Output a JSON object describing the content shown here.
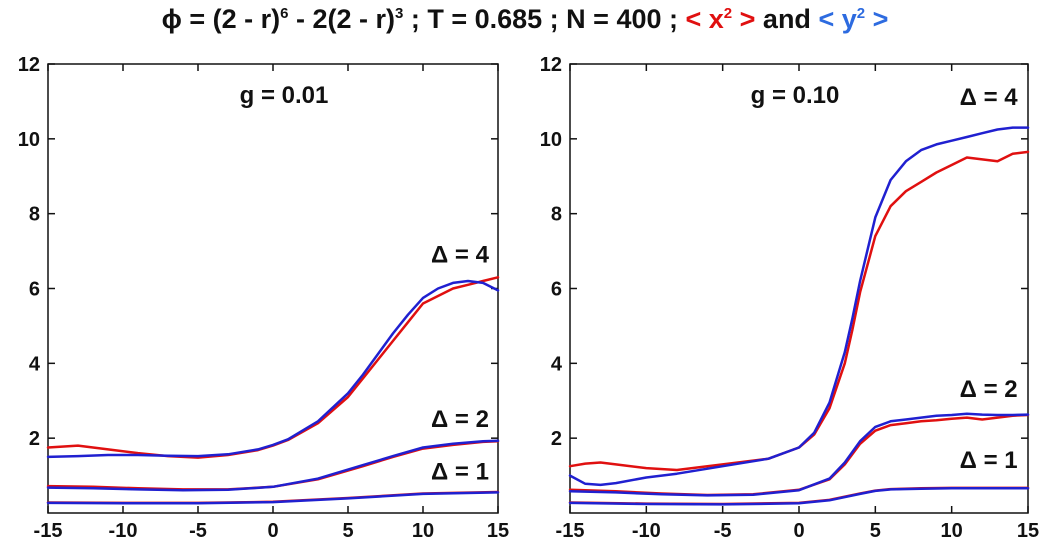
{
  "title": {
    "phi_symbol": "ϕ",
    "part1": " = (2 - r)",
    "exp6": "6",
    "part2": " - 2(2 - r)",
    "exp3": "3",
    "part3": " ; T = 0.685 ; N = 400 ; ",
    "x2_open": "< x",
    "x2_exp": "2",
    "x2_close": " >",
    "and": " and ",
    "y2_open": "< y",
    "y2_exp": "2",
    "y2_close": " >"
  },
  "colors": {
    "x2": "#e01010",
    "y2": "#2020d0",
    "legend_y2": "#2d6be0",
    "axis": "#111111"
  },
  "chart_data": [
    {
      "type": "line",
      "title": "g = 0.01",
      "xlim": [
        -15,
        15
      ],
      "ylim": [
        0,
        12
      ],
      "xticks": [
        -15,
        -10,
        -5,
        0,
        5,
        10,
        15
      ],
      "yticks": [
        2,
        4,
        6,
        8,
        10,
        12
      ],
      "grid": false,
      "annotations": [
        {
          "text": "Δ = 4",
          "x": 10,
          "y": 6.7
        },
        {
          "text": "Δ = 2",
          "x": 10,
          "y": 2.3
        },
        {
          "text": "Δ = 1",
          "x": 10,
          "y": 0.9
        }
      ],
      "series": [
        {
          "curve": "Δ = 4",
          "quantity": "<x²>",
          "color": "#e01010",
          "x": [
            -15,
            -13,
            -11,
            -9,
            -7,
            -5,
            -3,
            -1,
            0,
            1,
            3,
            5,
            6,
            7,
            8,
            9,
            10,
            11,
            12,
            13,
            14,
            15
          ],
          "y": [
            1.75,
            1.8,
            1.7,
            1.6,
            1.52,
            1.48,
            1.55,
            1.68,
            1.8,
            1.95,
            2.4,
            3.1,
            3.6,
            4.1,
            4.6,
            5.1,
            5.6,
            5.8,
            6.0,
            6.1,
            6.2,
            6.3
          ]
        },
        {
          "curve": "Δ = 4",
          "quantity": "<y²>",
          "color": "#2020d0",
          "x": [
            -15,
            -13,
            -11,
            -9,
            -7,
            -5,
            -3,
            -1,
            0,
            1,
            3,
            5,
            6,
            7,
            8,
            9,
            10,
            11,
            12,
            13,
            14,
            15
          ],
          "y": [
            1.5,
            1.52,
            1.55,
            1.55,
            1.53,
            1.52,
            1.57,
            1.7,
            1.82,
            1.97,
            2.45,
            3.2,
            3.7,
            4.25,
            4.8,
            5.3,
            5.75,
            6.0,
            6.15,
            6.2,
            6.15,
            5.95
          ]
        },
        {
          "curve": "Δ = 2",
          "quantity": "<x²>",
          "color": "#e01010",
          "x": [
            -15,
            -12,
            -9,
            -6,
            -3,
            0,
            3,
            6,
            8,
            10,
            12,
            14,
            15
          ],
          "y": [
            0.72,
            0.7,
            0.66,
            0.63,
            0.63,
            0.7,
            0.9,
            1.25,
            1.5,
            1.72,
            1.82,
            1.9,
            1.92
          ]
        },
        {
          "curve": "Δ = 2",
          "quantity": "<y²>",
          "color": "#2020d0",
          "x": [
            -15,
            -12,
            -9,
            -6,
            -3,
            0,
            3,
            6,
            8,
            10,
            12,
            14,
            15
          ],
          "y": [
            0.68,
            0.66,
            0.63,
            0.61,
            0.62,
            0.7,
            0.92,
            1.28,
            1.52,
            1.75,
            1.85,
            1.92,
            1.93
          ]
        },
        {
          "curve": "Δ = 1",
          "quantity": "<x²>",
          "color": "#e01010",
          "x": [
            -15,
            -10,
            -5,
            0,
            5,
            10,
            15
          ],
          "y": [
            0.28,
            0.27,
            0.27,
            0.3,
            0.4,
            0.52,
            0.56
          ]
        },
        {
          "curve": "Δ = 1",
          "quantity": "<y²>",
          "color": "#2020d0",
          "x": [
            -15,
            -10,
            -5,
            0,
            5,
            10,
            15
          ],
          "y": [
            0.27,
            0.26,
            0.26,
            0.29,
            0.39,
            0.51,
            0.55
          ]
        }
      ]
    },
    {
      "type": "line",
      "title": "g = 0.10",
      "xlim": [
        -15,
        15
      ],
      "ylim": [
        0,
        12
      ],
      "xticks": [
        -15,
        -10,
        -5,
        0,
        5,
        10,
        15
      ],
      "yticks": [
        2,
        4,
        6,
        8,
        10,
        12
      ],
      "grid": false,
      "annotations": [
        {
          "text": "Δ = 4",
          "x": 10,
          "y": 10.9
        },
        {
          "text": "Δ = 2",
          "x": 10,
          "y": 3.1
        },
        {
          "text": "Δ = 1",
          "x": 10,
          "y": 1.2
        }
      ],
      "series": [
        {
          "curve": "Δ = 4",
          "quantity": "<x²>",
          "color": "#e01010",
          "x": [
            -15,
            -14,
            -13,
            -12,
            -10,
            -8,
            -5,
            -2,
            0,
            1,
            2,
            3,
            3.5,
            4,
            5,
            6,
            7,
            8,
            9,
            10,
            11,
            12,
            13,
            14,
            15
          ],
          "y": [
            1.25,
            1.32,
            1.35,
            1.3,
            1.2,
            1.15,
            1.3,
            1.45,
            1.75,
            2.1,
            2.8,
            4.0,
            4.9,
            5.9,
            7.4,
            8.2,
            8.6,
            8.85,
            9.1,
            9.3,
            9.5,
            9.45,
            9.4,
            9.6,
            9.65
          ]
        },
        {
          "curve": "Δ = 4",
          "quantity": "<y²>",
          "color": "#2020d0",
          "x": [
            -15,
            -14,
            -13,
            -12,
            -10,
            -8,
            -5,
            -2,
            0,
            1,
            2,
            3,
            3.5,
            4,
            5,
            6,
            7,
            8,
            9,
            10,
            11,
            12,
            13,
            14,
            15
          ],
          "y": [
            1.0,
            0.78,
            0.75,
            0.8,
            0.95,
            1.05,
            1.25,
            1.45,
            1.75,
            2.15,
            2.95,
            4.3,
            5.2,
            6.2,
            7.9,
            8.9,
            9.4,
            9.7,
            9.85,
            9.95,
            10.05,
            10.15,
            10.25,
            10.3,
            10.3
          ]
        },
        {
          "curve": "Δ = 2",
          "quantity": "<x²>",
          "color": "#e01010",
          "x": [
            -15,
            -12,
            -9,
            -6,
            -3,
            0,
            2,
            3,
            4,
            5,
            6,
            7,
            8,
            9,
            10,
            11,
            12,
            13,
            14,
            15
          ],
          "y": [
            0.62,
            0.58,
            0.52,
            0.48,
            0.5,
            0.62,
            0.9,
            1.3,
            1.85,
            2.2,
            2.35,
            2.4,
            2.45,
            2.48,
            2.52,
            2.55,
            2.5,
            2.55,
            2.6,
            2.62
          ]
        },
        {
          "curve": "Δ = 2",
          "quantity": "<y²>",
          "color": "#2020d0",
          "x": [
            -15,
            -12,
            -9,
            -6,
            -3,
            0,
            2,
            3,
            4,
            5,
            6,
            7,
            8,
            9,
            10,
            11,
            12,
            13,
            14,
            15
          ],
          "y": [
            0.58,
            0.55,
            0.5,
            0.47,
            0.49,
            0.61,
            0.92,
            1.35,
            1.92,
            2.3,
            2.45,
            2.5,
            2.55,
            2.6,
            2.62,
            2.65,
            2.63,
            2.62,
            2.62,
            2.63
          ]
        },
        {
          "curve": "Δ = 1",
          "quantity": "<x²>",
          "color": "#e01010",
          "x": [
            -15,
            -10,
            -5,
            0,
            2,
            4,
            5,
            6,
            8,
            10,
            12,
            15
          ],
          "y": [
            0.28,
            0.25,
            0.24,
            0.27,
            0.35,
            0.52,
            0.6,
            0.64,
            0.66,
            0.67,
            0.67,
            0.67
          ]
        },
        {
          "curve": "Δ = 1",
          "quantity": "<y²>",
          "color": "#2020d0",
          "x": [
            -15,
            -10,
            -5,
            0,
            2,
            4,
            5,
            6,
            8,
            10,
            12,
            15
          ],
          "y": [
            0.27,
            0.24,
            0.23,
            0.26,
            0.34,
            0.51,
            0.59,
            0.63,
            0.65,
            0.66,
            0.66,
            0.66
          ]
        }
      ]
    }
  ]
}
